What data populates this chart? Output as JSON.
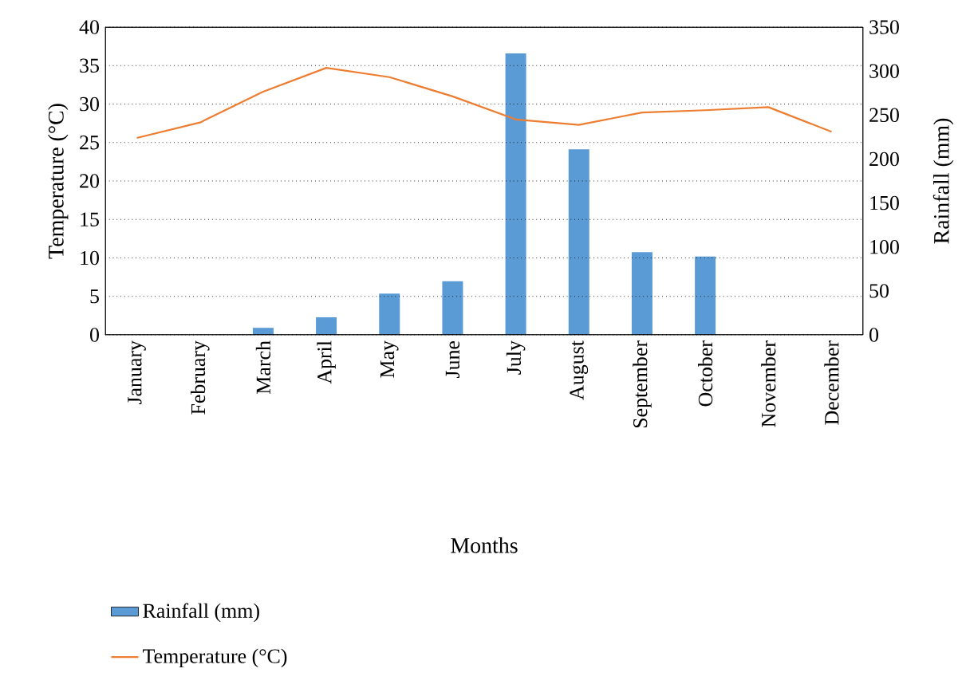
{
  "chart_data": {
    "type": "bar",
    "xlabel": "Months",
    "ylabel": "Temperature (°C)",
    "y2label": "Rainfall (mm)",
    "categories": [
      "January",
      "February",
      "March",
      "April",
      "May",
      "June",
      "July",
      "August",
      "September",
      "October",
      "November",
      "December"
    ],
    "series": [
      {
        "name": "Rainfall (mm)",
        "axis": "y2",
        "color": "#5b9bd5",
        "values": [
          0,
          0,
          8,
          20,
          47,
          61,
          320,
          211,
          94,
          89,
          0,
          0
        ]
      },
      {
        "name": "Temperature (°C)",
        "type": "line",
        "color": "#ed7d31",
        "values": [
          25.6,
          27.6,
          31.6,
          34.7,
          33.5,
          31.0,
          28.0,
          27.3,
          28.9,
          29.2,
          29.6,
          26.4
        ]
      }
    ],
    "ylim": [
      0,
      40
    ],
    "yticks": [
      0,
      5,
      10,
      15,
      20,
      25,
      30,
      35,
      40
    ],
    "y2lim": [
      0,
      350
    ],
    "y2ticks": [
      0,
      50,
      100,
      150,
      200,
      250,
      300,
      350
    ],
    "grid": "y",
    "legend": "bottom"
  }
}
